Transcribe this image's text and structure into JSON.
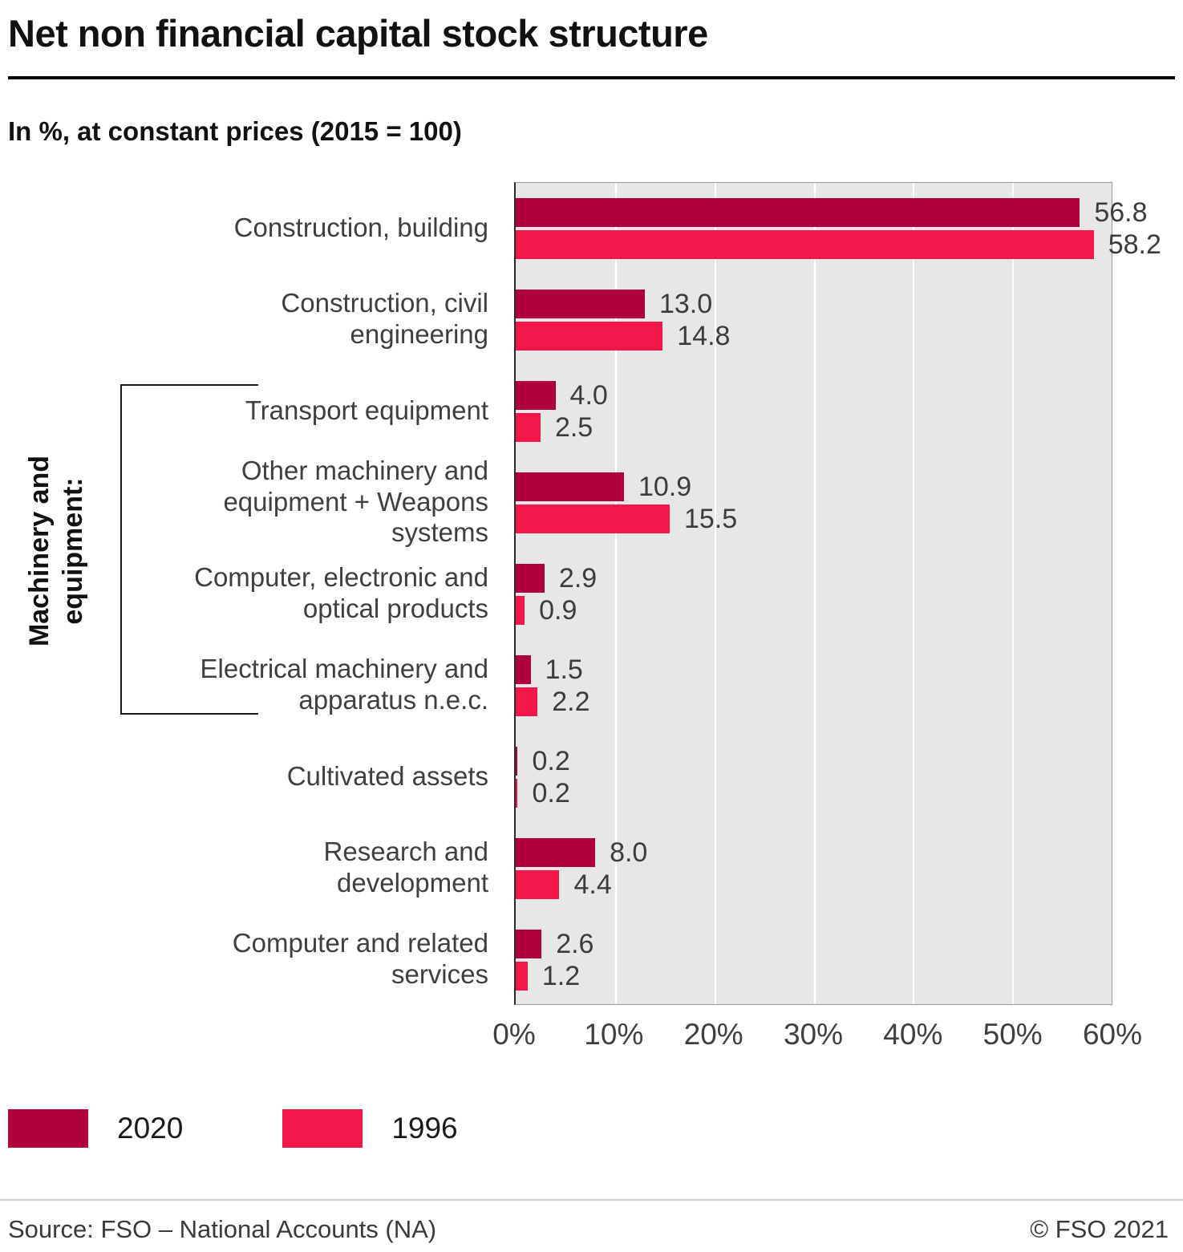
{
  "header": {
    "title": "Net non financial capital stock structure",
    "subtitle": "In %, at constant prices (2015 = 100)"
  },
  "chart_data": {
    "type": "bar",
    "orientation": "horizontal",
    "title": "Net non financial capital stock structure",
    "subtitle": "In %, at constant prices (2015 = 100)",
    "categories": [
      "Construction, building",
      "Construction, civil engineering",
      "Transport equipment",
      "Other machinery and equipment + Weapons systems",
      "Computer, electronic and optical products",
      "Electrical machinery and apparatus n.e.c.",
      "Cultivated assets",
      "Research and development",
      "Computer and related services"
    ],
    "group_label": "Machinery and equipment:",
    "group_category_range": [
      2,
      5
    ],
    "series": [
      {
        "name": "2020",
        "color": "#b0013f",
        "values": [
          56.8,
          13.0,
          4.0,
          10.9,
          2.9,
          1.5,
          0.2,
          8.0,
          2.6
        ]
      },
      {
        "name": "1996",
        "color": "#f2164b",
        "values": [
          58.2,
          14.8,
          2.5,
          15.5,
          0.9,
          2.2,
          0.2,
          4.4,
          1.2
        ]
      }
    ],
    "xlim": [
      0,
      60
    ],
    "x_ticks": [
      "0%",
      "10%",
      "20%",
      "30%",
      "40%",
      "50%",
      "60%"
    ],
    "grid": true,
    "plot_background": "#e7e7e7",
    "legend_position": "bottom-left",
    "value_labels": true
  },
  "footer": {
    "source": "Source: FSO – National Accounts (NA)",
    "copyright": "© FSO 2021"
  }
}
